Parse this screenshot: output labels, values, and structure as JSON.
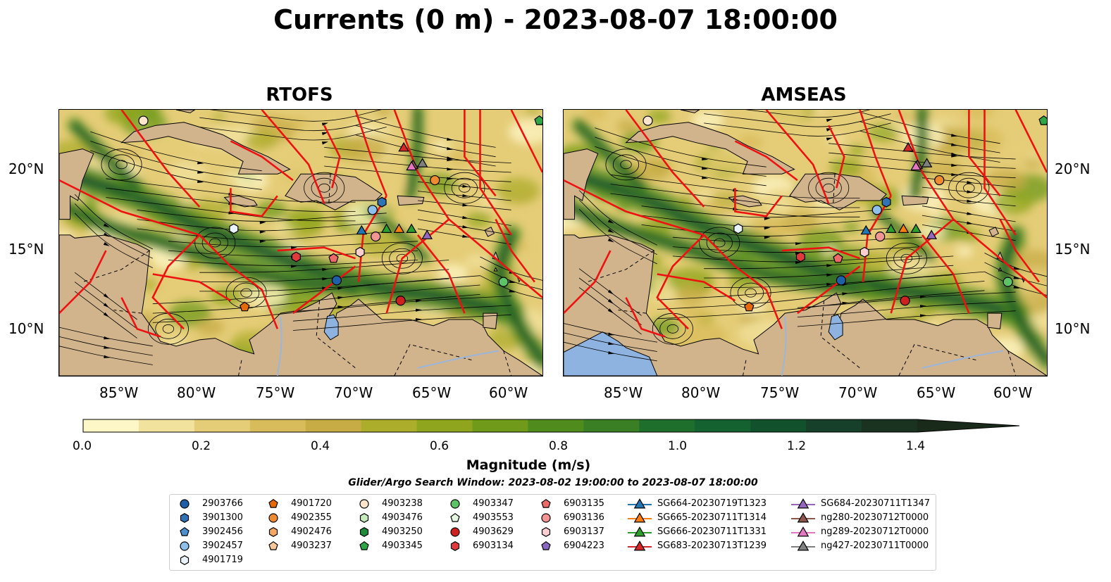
{
  "title": "Currents (0 m) - 2023-08-07 18:00:00",
  "panels": [
    {
      "title": "RTOFS"
    },
    {
      "title": "AMSEAS"
    }
  ],
  "map": {
    "lat_labels": [
      "20°N",
      "15°N",
      "10°N"
    ],
    "lon_labels": [
      "85°W",
      "80°W",
      "75°W",
      "70°W",
      "65°W",
      "60°W"
    ],
    "colors": {
      "land": "#d2b48c",
      "water": "#8fb3e0",
      "tracks": "#ee1111",
      "streamlines": "#000000"
    }
  },
  "colorbar": {
    "title": "Magnitude (m/s)",
    "min": 0.0,
    "max": 1.5,
    "tick_labels": [
      "0.0",
      "0.2",
      "0.4",
      "0.6",
      "0.8",
      "1.0",
      "1.2",
      "1.4"
    ],
    "colors": [
      "#fdf6c6",
      "#f1e29e",
      "#e5cd78",
      "#d8bb5a",
      "#c7ab45",
      "#adad2c",
      "#8fa51d",
      "#6f9a1a",
      "#4f8b1d",
      "#3a7f24",
      "#1f6f2c",
      "#136230",
      "#11522c",
      "#164029",
      "#1a3220"
    ]
  },
  "search_window": "Glider/Argo Search Window: 2023-08-02 19:00:00 to 2023-08-07 18:00:00",
  "legend": {
    "items": [
      {
        "label": "2903766",
        "marker": "circle",
        "color": "#1f5fa8"
      },
      {
        "label": "3901300",
        "marker": "hexagon",
        "color": "#2f72b5"
      },
      {
        "label": "3902456",
        "marker": "pentagon",
        "color": "#4a90d0"
      },
      {
        "label": "3902457",
        "marker": "circle",
        "color": "#8ec0ea"
      },
      {
        "label": "4901719",
        "marker": "hexagon",
        "color": "#e9f3fb"
      },
      {
        "label": "4901720",
        "marker": "pentagon",
        "color": "#e66a0a"
      },
      {
        "label": "4902355",
        "marker": "circle",
        "color": "#f08a30"
      },
      {
        "label": "4902476",
        "marker": "hexagon",
        "color": "#f5a860"
      },
      {
        "label": "4903237",
        "marker": "pentagon",
        "color": "#f8c89c"
      },
      {
        "label": "4903238",
        "marker": "circle",
        "color": "#fde4cc"
      },
      {
        "label": "4903476",
        "marker": "hexagon",
        "color": "#c6ecbd"
      },
      {
        "label": "4903250",
        "marker": "hexagon",
        "color": "#1d8a38"
      },
      {
        "label": "4903345",
        "marker": "pentagon",
        "color": "#2ea546"
      },
      {
        "label": "4903347",
        "marker": "circle",
        "color": "#5cc466"
      },
      {
        "label": "4903553",
        "marker": "pentagon",
        "color": "#e4f6df"
      },
      {
        "label": "4903629",
        "marker": "circle",
        "color": "#cf2020"
      },
      {
        "label": "6903134",
        "marker": "hexagon",
        "color": "#e03a3a"
      },
      {
        "label": "6903135",
        "marker": "pentagon",
        "color": "#ee6a6a"
      },
      {
        "label": "6903136",
        "marker": "circle",
        "color": "#f39595"
      },
      {
        "label": "6903137",
        "marker": "hexagon",
        "color": "#fbcfcf"
      },
      {
        "label": "6904223",
        "marker": "pentagon",
        "color": "#8a68c0"
      },
      {
        "label": "SG664-20230719T1323",
        "marker": "triangle",
        "color": "#1f77b4"
      },
      {
        "label": "SG665-20230711T1314",
        "marker": "triangle",
        "color": "#ff7f0e"
      },
      {
        "label": "SG666-20230711T1331",
        "marker": "triangle",
        "color": "#2ca02c"
      },
      {
        "label": "SG683-20230713T1239",
        "marker": "triangle",
        "color": "#d62728"
      },
      {
        "label": "SG684-20230711T1347",
        "marker": "triangle",
        "color": "#9467bd"
      },
      {
        "label": "ng280-20230712T0000",
        "marker": "triangle",
        "color": "#8c564b"
      },
      {
        "label": "ng289-20230712T0000",
        "marker": "triangle",
        "color": "#e377c2"
      },
      {
        "label": "ng427-20230711T0000",
        "marker": "triangle",
        "color": "#7f7f7f"
      }
    ]
  },
  "markers": [
    {
      "label": "2903766",
      "lon": -71.2,
      "lat": 13.1
    },
    {
      "label": "3901300",
      "lon": -68.3,
      "lat": 18.1
    },
    {
      "label": "3902457",
      "lon": -68.9,
      "lat": 17.6
    },
    {
      "label": "4901719",
      "lon": -77.8,
      "lat": 16.4
    },
    {
      "label": "4901720",
      "lon": -77.1,
      "lat": 11.4
    },
    {
      "label": "4902355",
      "lon": -64.9,
      "lat": 19.5
    },
    {
      "label": "4903238",
      "lon": -83.6,
      "lat": 23.3
    },
    {
      "label": "4903345",
      "lon": -58.2,
      "lat": 23.3
    },
    {
      "label": "4903347",
      "lon": -60.5,
      "lat": 13.0
    },
    {
      "label": "4903629",
      "lon": -67.1,
      "lat": 11.8
    },
    {
      "label": "6903134",
      "lon": -73.8,
      "lat": 14.6
    },
    {
      "label": "6903135",
      "lon": -71.4,
      "lat": 14.5
    },
    {
      "label": "6903136",
      "lon": -68.7,
      "lat": 15.9
    },
    {
      "label": "6903137",
      "lon": -69.7,
      "lat": 14.9
    },
    {
      "label": "SG664-20230719T1323",
      "lon": -69.6,
      "lat": 16.3
    },
    {
      "label": "SG665-20230711T1314",
      "lon": -67.2,
      "lat": 16.4
    },
    {
      "label": "SG666-20230711T1331",
      "lon": -66.4,
      "lat": 16.4
    },
    {
      "label": "SG666-20230711T1331",
      "lon": -68.0,
      "lat": 16.4
    },
    {
      "label": "SG683-20230713T1239",
      "lon": -66.9,
      "lat": 21.6
    },
    {
      "label": "SG684-20230711T1347",
      "lon": -65.4,
      "lat": 16.0
    },
    {
      "label": "ng280-20230712T0000",
      "lon": -66.3,
      "lat": 20.5
    },
    {
      "label": "ng289-20230712T0000",
      "lon": -66.4,
      "lat": 20.4
    },
    {
      "label": "ng427-20230711T0000",
      "lon": -65.7,
      "lat": 20.6
    }
  ]
}
